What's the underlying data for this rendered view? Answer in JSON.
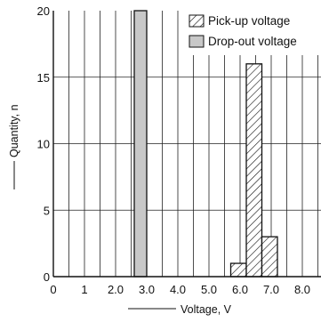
{
  "chart_data": {
    "type": "bar",
    "xlabel": "Voltage, V",
    "ylabel": "Quantity, n",
    "xlim": [
      0,
      8.6
    ],
    "ylim": [
      0,
      20
    ],
    "grid": true,
    "legend_position": "top-right",
    "xticks": [
      {
        "value": 0,
        "label": "0"
      },
      {
        "value": 1,
        "label": "1"
      },
      {
        "value": 2,
        "label": "2.0"
      },
      {
        "value": 3,
        "label": "3.0"
      },
      {
        "value": 4,
        "label": "4.0"
      },
      {
        "value": 5,
        "label": "5.0"
      },
      {
        "value": 6,
        "label": "6.0"
      },
      {
        "value": 7,
        "label": "7.0"
      },
      {
        "value": 8,
        "label": "8.0"
      }
    ],
    "yticks": [
      {
        "value": 0,
        "label": "0"
      },
      {
        "value": 5,
        "label": "5"
      },
      {
        "value": 10,
        "label": "10"
      },
      {
        "value": 15,
        "label": "15"
      },
      {
        "value": 20,
        "label": "20"
      }
    ],
    "series": [
      {
        "name": "Pick-up voltage",
        "style": "hatched",
        "bars": [
          {
            "x0": 5.7,
            "x1": 6.2,
            "value": 1
          },
          {
            "x0": 6.2,
            "x1": 6.7,
            "value": 16
          },
          {
            "x0": 6.7,
            "x1": 7.2,
            "value": 3
          }
        ]
      },
      {
        "name": "Drop-out voltage",
        "style": "gray",
        "bars": [
          {
            "x0": 2.6,
            "x1": 3.0,
            "value": 20
          }
        ]
      }
    ]
  },
  "colors": {
    "gray_fill": "#c8c8c8",
    "line": "#111111",
    "grid": "#222222"
  }
}
